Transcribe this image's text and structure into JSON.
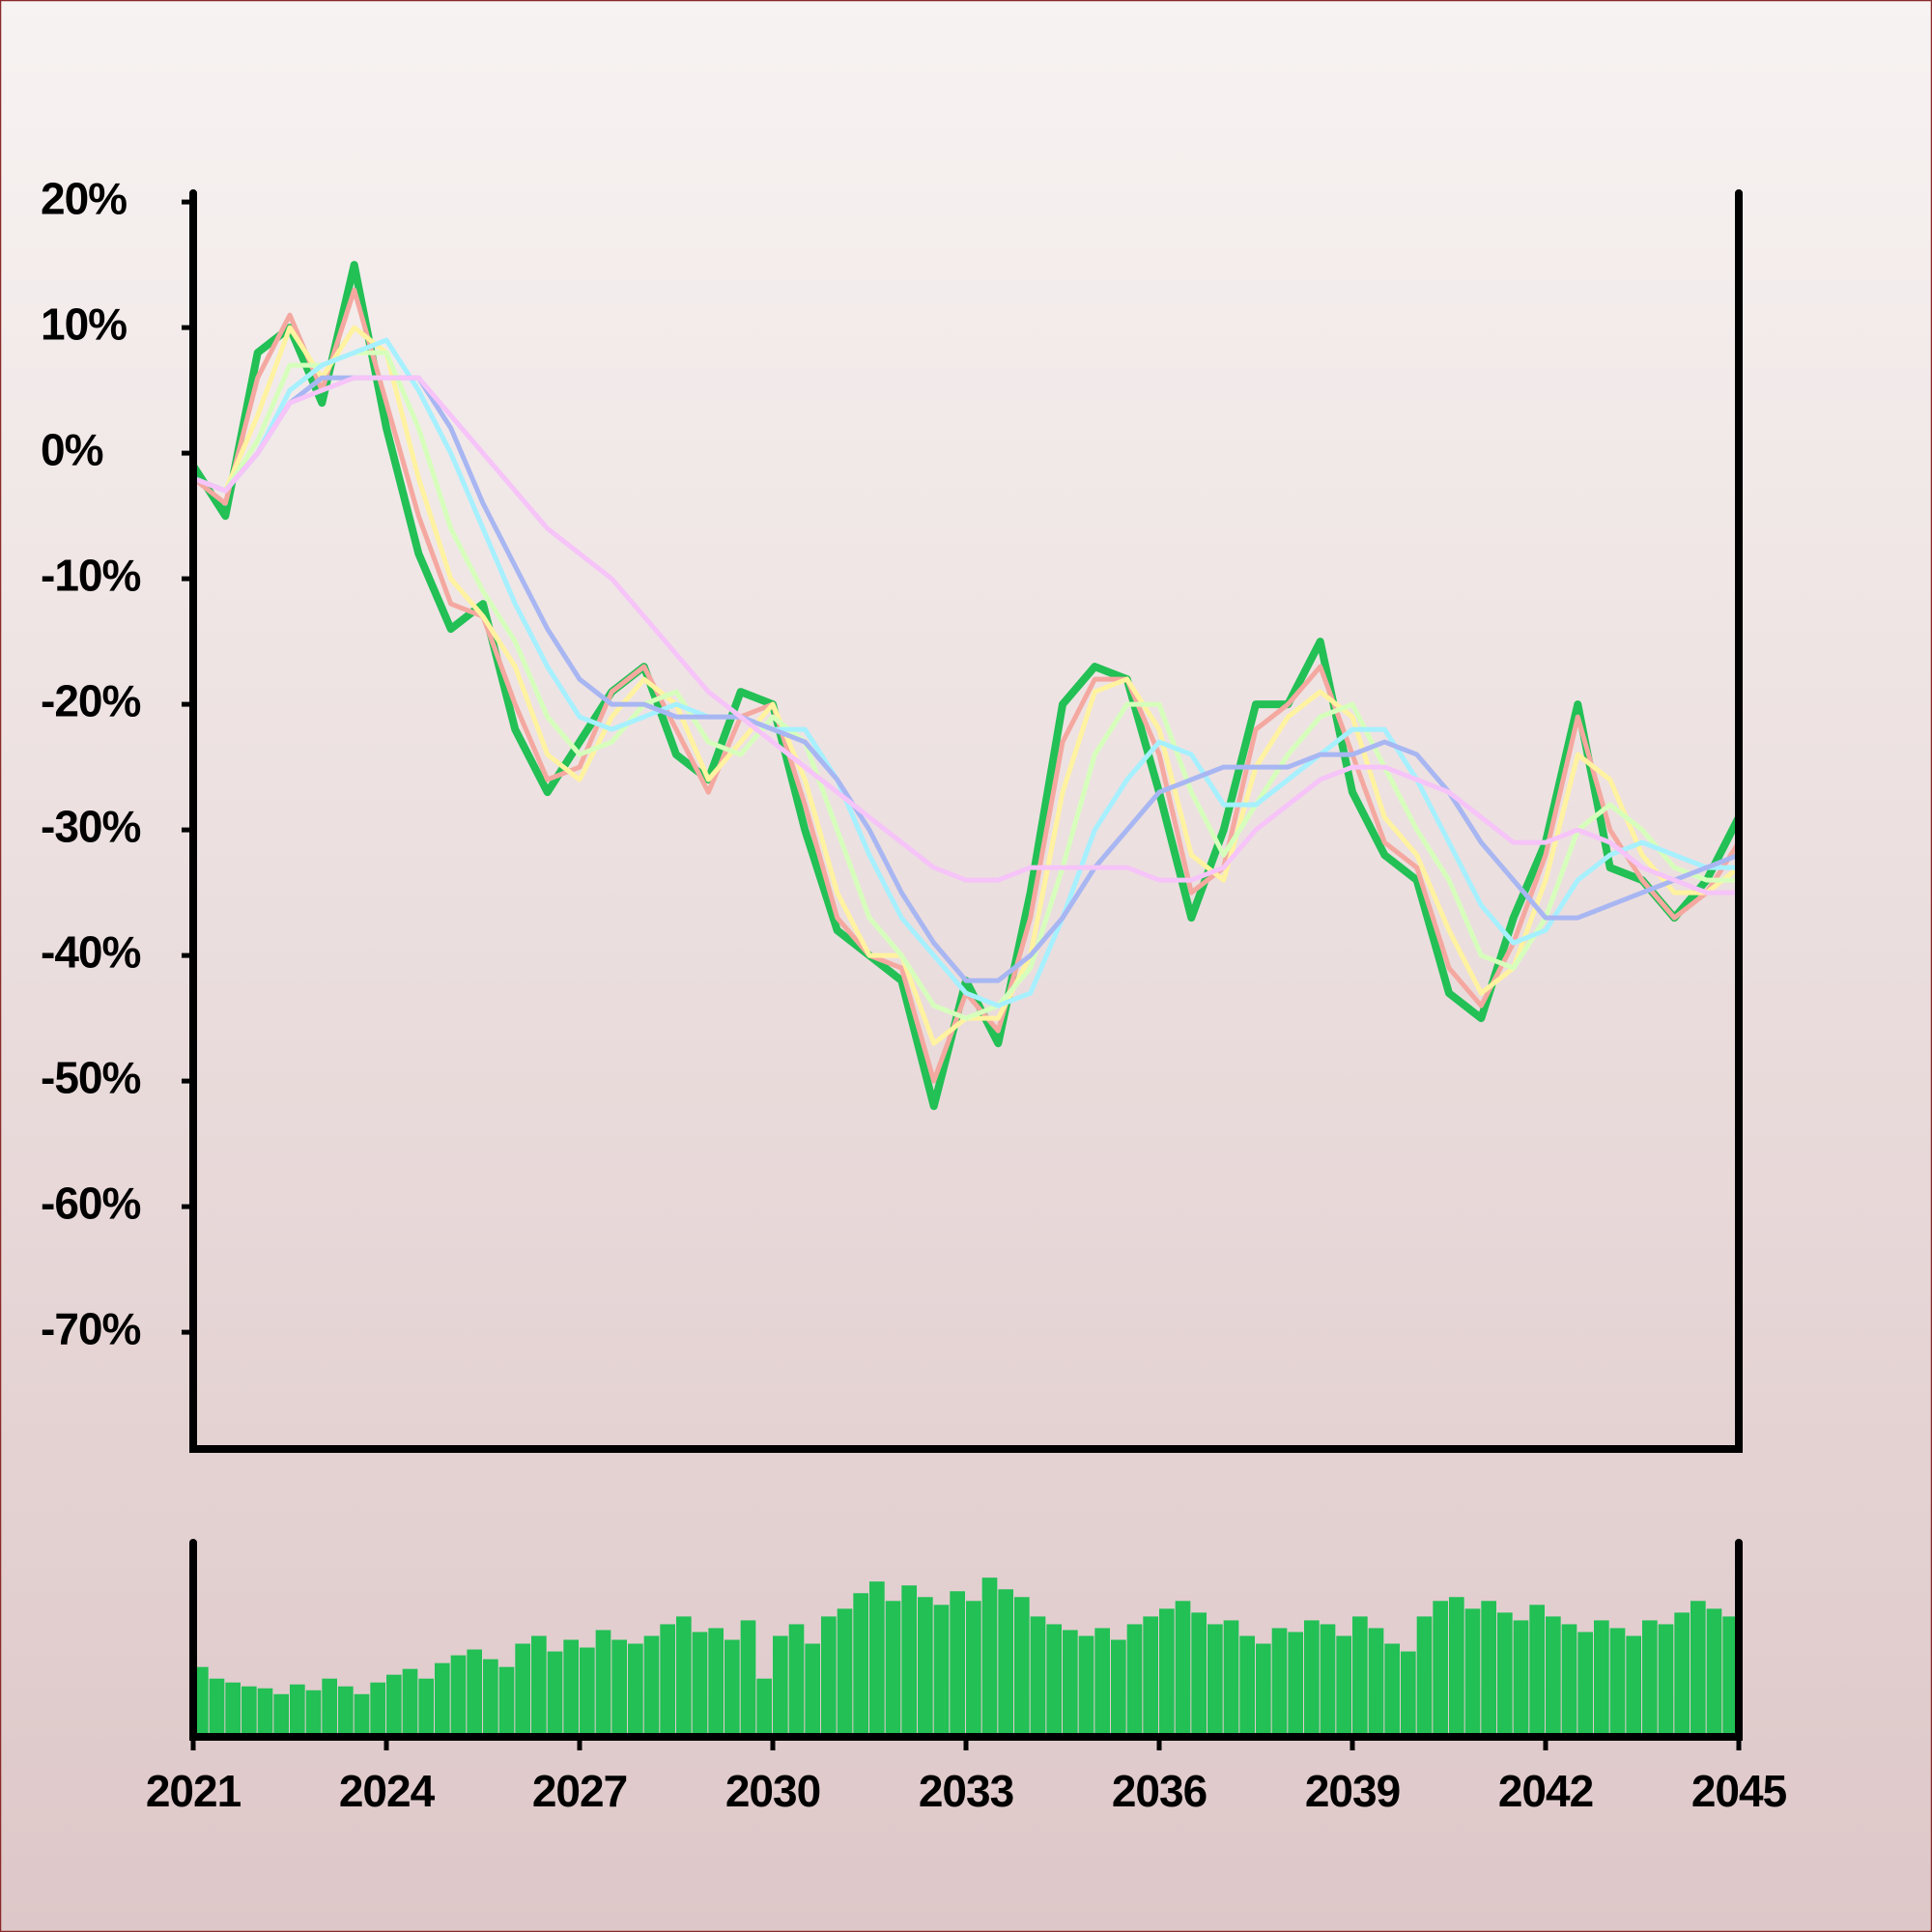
{
  "chart_data": [
    {
      "type": "line",
      "x": [
        2021,
        2021.5,
        2022,
        2022.5,
        2023,
        2023.5,
        2024,
        2024.5,
        2025,
        2025.5,
        2026,
        2026.5,
        2027,
        2027.5,
        2028,
        2028.5,
        2029,
        2029.5,
        2030,
        2030.5,
        2031,
        2031.5,
        2032,
        2032.5,
        2033,
        2033.5,
        2034,
        2034.5,
        2035,
        2035.5,
        2036,
        2036.5,
        2037,
        2037.5,
        2038,
        2038.5,
        2039,
        2039.5,
        2040,
        2040.5,
        2041,
        2041.5,
        2042,
        2042.5,
        2043,
        2043.5,
        2044,
        2044.5,
        2045
      ],
      "series": [
        {
          "color": "#22c055",
          "values": [
            -1,
            -5,
            8,
            10,
            4,
            15,
            2,
            -8,
            -14,
            -12,
            -22,
            -27,
            -23,
            -19,
            -17,
            -24,
            -26,
            -19,
            -20,
            -30,
            -38,
            -40,
            -42,
            -52,
            -42,
            -47,
            -35,
            -20,
            -17,
            -18,
            -27,
            -37,
            -30,
            -20,
            -20,
            -15,
            -27,
            -32,
            -34,
            -43,
            -45,
            -37,
            -31,
            -20,
            -33,
            -34,
            -37,
            -34,
            -29
          ]
        },
        {
          "color": "#f4a8a0",
          "values": [
            -2,
            -4,
            6,
            11,
            5,
            13,
            4,
            -5,
            -12,
            -13,
            -20,
            -26,
            -25,
            -19,
            -17,
            -22,
            -27,
            -21,
            -20,
            -28,
            -37,
            -40,
            -41,
            -50,
            -43,
            -46,
            -37,
            -23,
            -18,
            -18,
            -24,
            -35,
            -33,
            -22,
            -20,
            -17,
            -24,
            -31,
            -33,
            -41,
            -44,
            -39,
            -32,
            -21,
            -30,
            -34,
            -37,
            -35,
            -31
          ]
        },
        {
          "color": "#fff2a0",
          "values": [
            -2,
            -3,
            3,
            10,
            6,
            10,
            8,
            -2,
            -10,
            -13,
            -17,
            -24,
            -26,
            -21,
            -18,
            -20,
            -26,
            -23,
            -20,
            -26,
            -35,
            -40,
            -40,
            -47,
            -45,
            -45,
            -40,
            -27,
            -19,
            -18,
            -22,
            -32,
            -34,
            -25,
            -21,
            -19,
            -21,
            -29,
            -32,
            -38,
            -43,
            -41,
            -34,
            -24,
            -26,
            -32,
            -35,
            -35,
            -33
          ]
        },
        {
          "color": "#d6ffbc",
          "values": [
            -2,
            -3,
            1,
            7,
            7,
            8,
            8,
            2,
            -6,
            -11,
            -15,
            -21,
            -24,
            -23,
            -20,
            -19,
            -23,
            -24,
            -21,
            -23,
            -30,
            -37,
            -40,
            -44,
            -45,
            -44,
            -41,
            -33,
            -24,
            -20,
            -20,
            -27,
            -32,
            -28,
            -24,
            -21,
            -20,
            -25,
            -30,
            -34,
            -40,
            -41,
            -37,
            -30,
            -28,
            -30,
            -33,
            -34,
            -34
          ]
        },
        {
          "color": "#a6f0ff",
          "values": [
            -2,
            -3,
            0,
            5,
            7,
            8,
            9,
            5,
            0,
            -6,
            -12,
            -17,
            -21,
            -22,
            -21,
            -20,
            -21,
            -21,
            -22,
            -22,
            -26,
            -32,
            -37,
            -40,
            -43,
            -44,
            -43,
            -37,
            -30,
            -26,
            -23,
            -24,
            -28,
            -28,
            -26,
            -24,
            -22,
            -22,
            -26,
            -31,
            -36,
            -39,
            -38,
            -34,
            -32,
            -31,
            -32,
            -33,
            -33
          ]
        },
        {
          "color": "#a8b6f2",
          "values": [
            -2,
            -3,
            0,
            4,
            6,
            6,
            6,
            6,
            2,
            -4,
            -9,
            -14,
            -18,
            -20,
            -20,
            -21,
            -21,
            -21,
            -22,
            -23,
            -26,
            -30,
            -35,
            -39,
            -42,
            -42,
            -40,
            -37,
            -33,
            -30,
            -27,
            -26,
            -25,
            -25,
            -25,
            -24,
            -24,
            -23,
            -24,
            -27,
            -31,
            -34,
            -37,
            -37,
            -36,
            -35,
            -34,
            -33,
            -32
          ]
        },
        {
          "color": "#f6c4f8",
          "values": [
            -2,
            -3,
            0,
            4,
            5,
            6,
            6,
            6,
            3,
            0,
            -3,
            -6,
            -8,
            -10,
            -13,
            -16,
            -19,
            -21,
            -23,
            -25,
            -27,
            -29,
            -31,
            -33,
            -34,
            -34,
            -33,
            -33,
            -33,
            -33,
            -34,
            -34,
            -33,
            -30,
            -28,
            -26,
            -25,
            -25,
            -26,
            -27,
            -29,
            -31,
            -31,
            -30,
            -31,
            -33,
            -34,
            -35,
            -35
          ]
        }
      ],
      "xlim": [
        2021,
        2045
      ],
      "ylim": [
        -79.3,
        20.7
      ],
      "yticks": [
        {
          "value": 20,
          "label": "20%"
        },
        {
          "value": 10,
          "label": "10%"
        },
        {
          "value": 0,
          "label": "0%"
        },
        {
          "value": -10,
          "label": "-10%"
        },
        {
          "value": -20,
          "label": "-20%"
        },
        {
          "value": -30,
          "label": "-30%"
        },
        {
          "value": -40,
          "label": "-40%"
        },
        {
          "value": -50,
          "label": "-50%"
        },
        {
          "value": -60,
          "label": "-60%"
        },
        {
          "value": -70,
          "label": "-70%"
        }
      ]
    },
    {
      "type": "bar",
      "x": [
        2021,
        2021.25,
        2021.5,
        2021.75,
        2022,
        2022.25,
        2022.5,
        2022.75,
        2023,
        2023.25,
        2023.5,
        2023.75,
        2024,
        2024.25,
        2024.5,
        2024.75,
        2025,
        2025.25,
        2025.5,
        2025.75,
        2026,
        2026.25,
        2026.5,
        2026.75,
        2027,
        2027.25,
        2027.5,
        2027.75,
        2028,
        2028.25,
        2028.5,
        2028.75,
        2029,
        2029.25,
        2029.5,
        2029.75,
        2030,
        2030.25,
        2030.5,
        2030.75,
        2031,
        2031.25,
        2031.5,
        2031.75,
        2032,
        2032.25,
        2032.5,
        2032.75,
        2033,
        2033.25,
        2033.5,
        2033.75,
        2034,
        2034.25,
        2034.5,
        2034.75,
        2035,
        2035.25,
        2035.5,
        2035.75,
        2036,
        2036.25,
        2036.5,
        2036.75,
        2037,
        2037.25,
        2037.5,
        2037.75,
        2038,
        2038.25,
        2038.5,
        2038.75,
        2039,
        2039.25,
        2039.5,
        2039.75,
        2040,
        2040.25,
        2040.5,
        2040.75,
        2041,
        2041.25,
        2041.5,
        2041.75,
        2042,
        2042.25,
        2042.5,
        2042.75,
        2043,
        2043.25,
        2043.5,
        2043.75,
        2044,
        2044.25,
        2044.5,
        2044.75
      ],
      "values": [
        36,
        30,
        28,
        26,
        25,
        22,
        27,
        24,
        30,
        26,
        22,
        28,
        32,
        35,
        30,
        38,
        42,
        45,
        40,
        36,
        48,
        52,
        44,
        50,
        46,
        55,
        50,
        48,
        52,
        58,
        62,
        54,
        56,
        50,
        60,
        30,
        52,
        58,
        48,
        62,
        66,
        74,
        80,
        70,
        78,
        72,
        68,
        75,
        70,
        82,
        76,
        72,
        62,
        58,
        55,
        52,
        56,
        50,
        58,
        62,
        66,
        70,
        64,
        58,
        60,
        52,
        48,
        56,
        54,
        60,
        58,
        52,
        62,
        56,
        48,
        44,
        62,
        70,
        72,
        66,
        70,
        64,
        60,
        68,
        62,
        58,
        54,
        60,
        56,
        52,
        60,
        58,
        64,
        70,
        66,
        62
      ],
      "color": "#22c055",
      "xlim": [
        2021,
        2045
      ],
      "ylim": [
        0,
        100
      ],
      "xticks": [
        2021,
        2024,
        2027,
        2030,
        2033,
        2036,
        2039,
        2042,
        2045
      ]
    }
  ]
}
